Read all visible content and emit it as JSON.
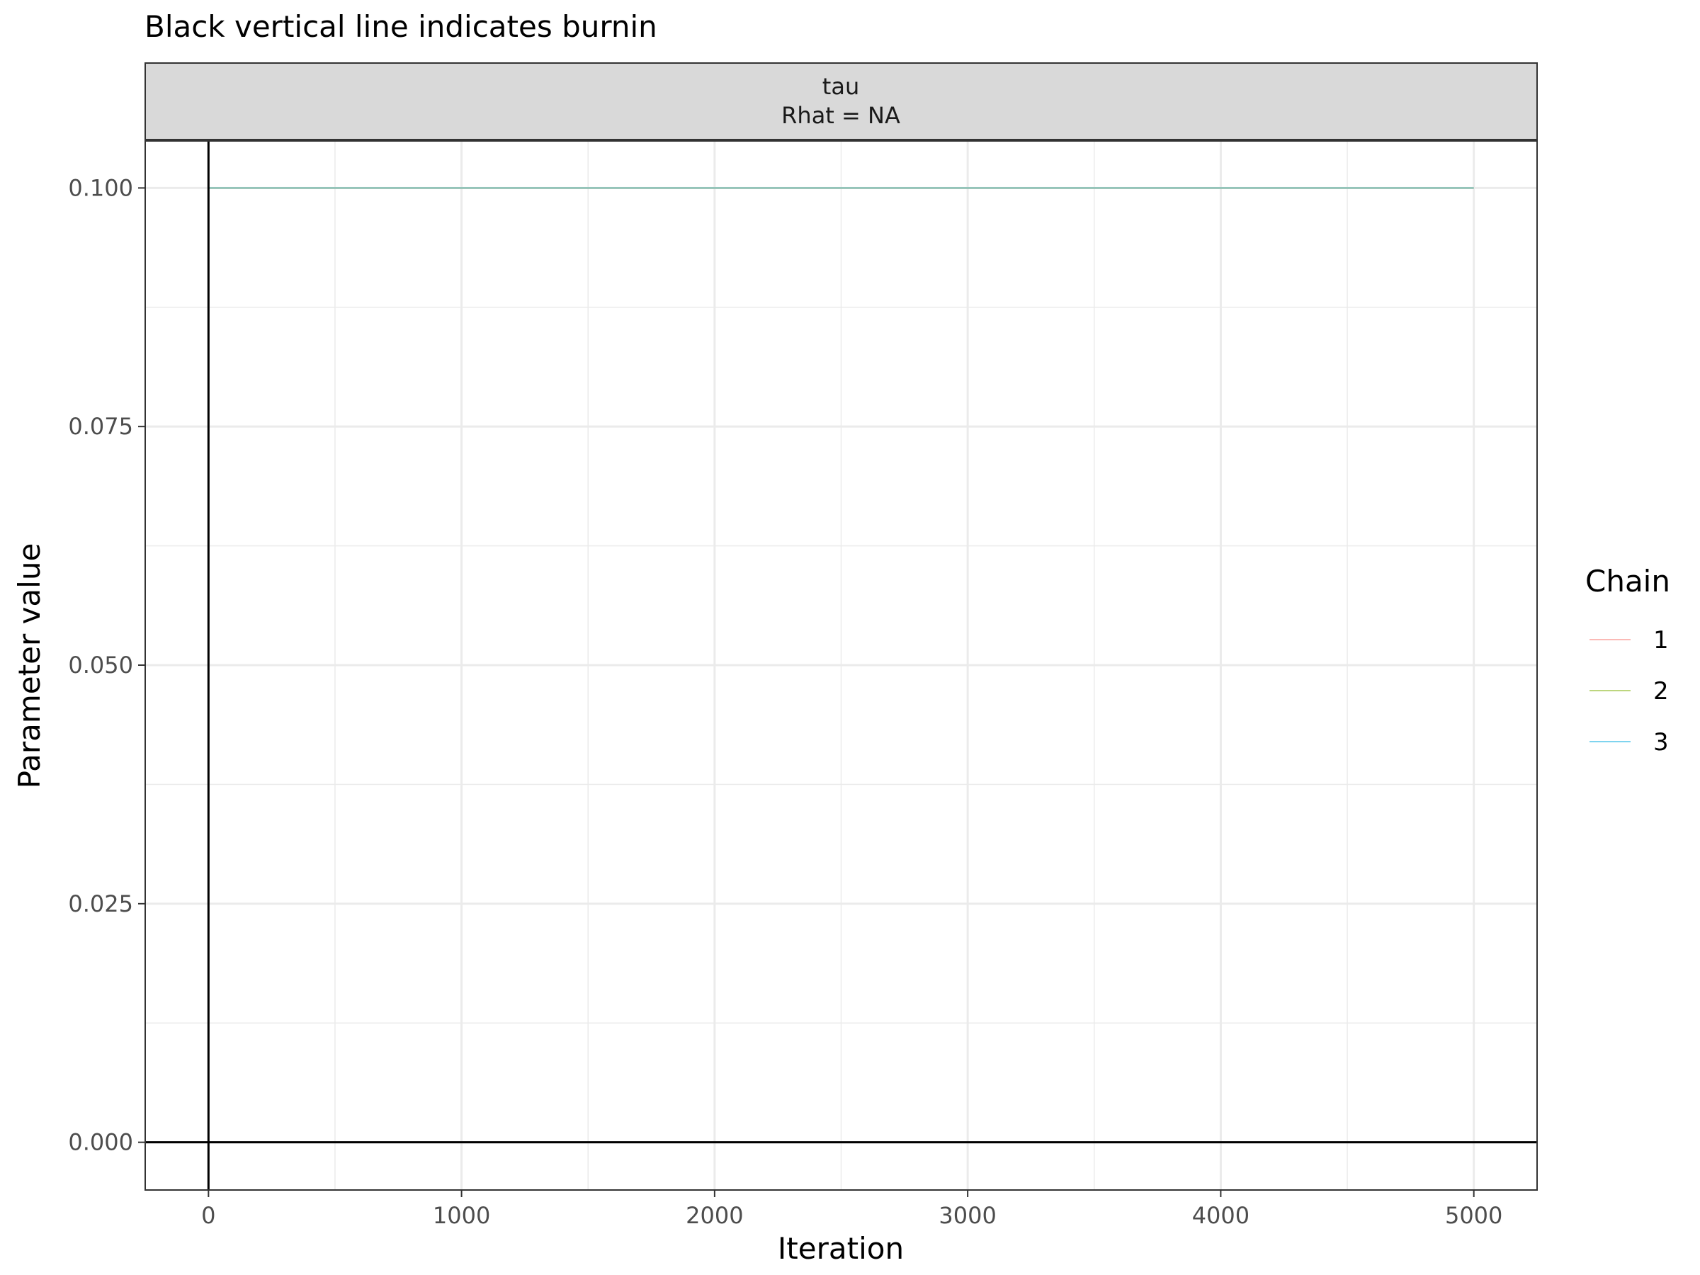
{
  "chart_data": {
    "type": "line",
    "title": "Black vertical line indicates burnin",
    "facet": {
      "title": "tau",
      "subtitle": "Rhat = NA"
    },
    "xlabel": "Iteration",
    "ylabel": "Parameter value",
    "xlim": [
      -250,
      5250
    ],
    "ylim": [
      -0.005,
      0.105
    ],
    "x_ticks": [
      0,
      1000,
      2000,
      3000,
      4000,
      5000
    ],
    "x_tick_labels": [
      "0",
      "1000",
      "2000",
      "3000",
      "4000",
      "5000"
    ],
    "x_minor_ticks": [
      500,
      1500,
      2500,
      3500,
      4500
    ],
    "y_ticks": [
      0,
      0.025,
      0.05,
      0.075,
      0.1
    ],
    "y_tick_labels": [
      "0.000",
      "0.025",
      "0.050",
      "0.075",
      "0.100"
    ],
    "y_minor_ticks": [
      0.0125,
      0.0375,
      0.0625,
      0.0875
    ],
    "grid": true,
    "burnin_x": 0,
    "hline_y": 0,
    "legend": {
      "title": "Chain",
      "placement": "right"
    },
    "series": [
      {
        "name": "1",
        "color": "#F8766D",
        "x": [
          0,
          5000
        ],
        "y": [
          0.1,
          0.1
        ]
      },
      {
        "name": "2",
        "color": "#7CAE00",
        "x": [
          0,
          5000
        ],
        "y": [
          0.1,
          0.1
        ]
      },
      {
        "name": "3",
        "color": "#00A9E0",
        "x": [
          0,
          5000
        ],
        "y": [
          0.1,
          0.1
        ]
      }
    ]
  }
}
